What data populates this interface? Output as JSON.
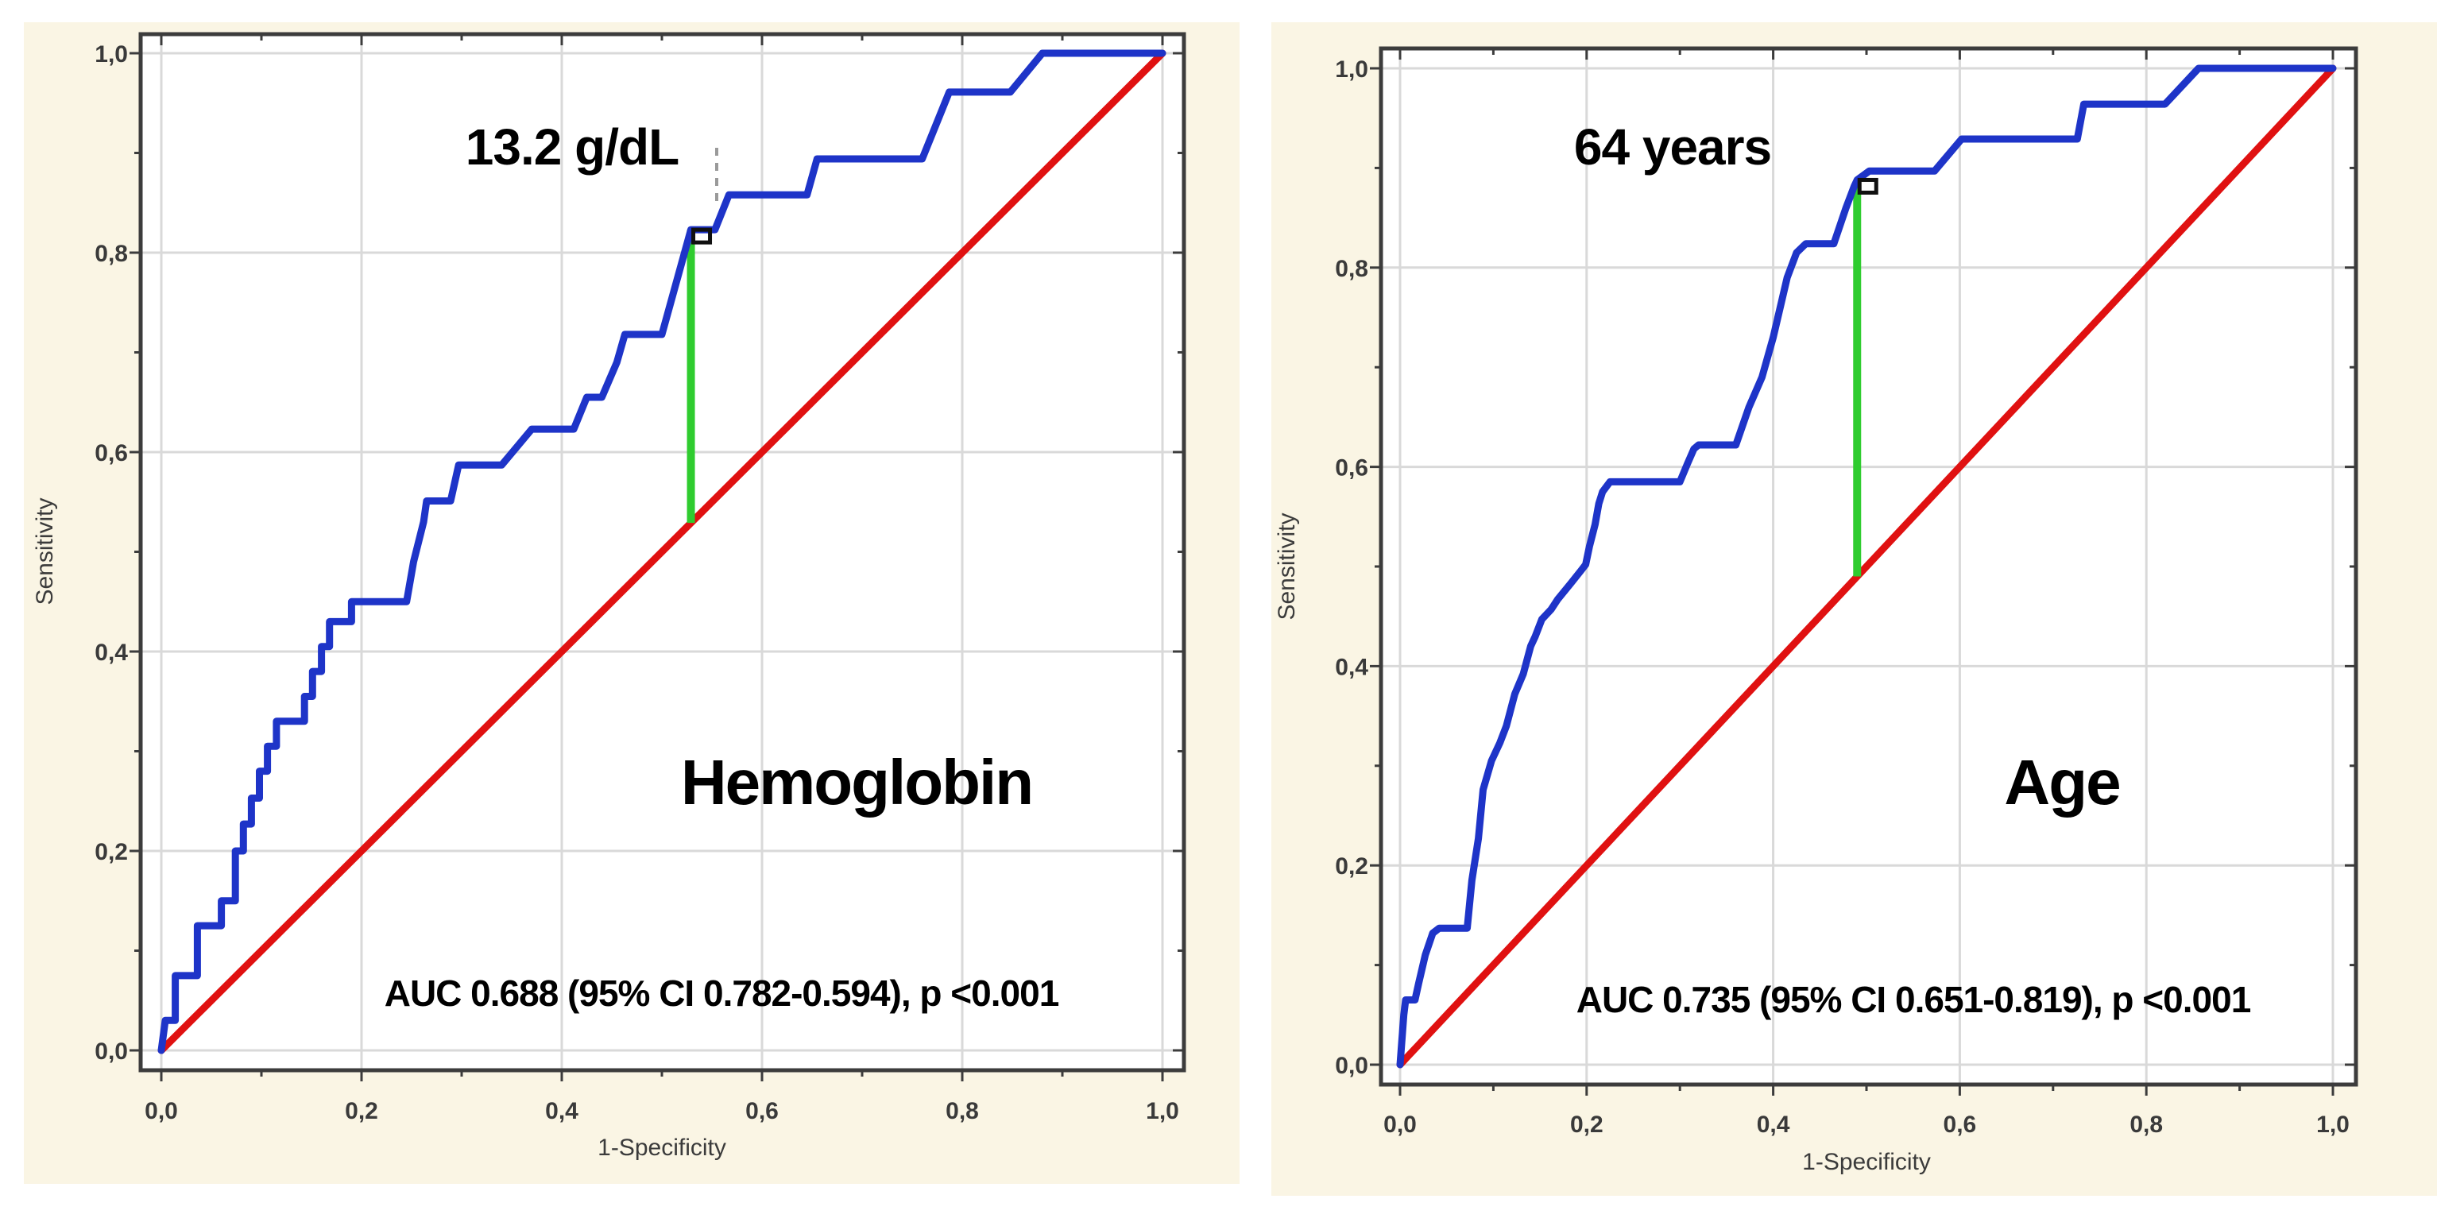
{
  "page": {
    "background": "#ffffff",
    "panel_background": "#faf5e4",
    "plot_background": "#ffffff",
    "grid_color": "#d9d9d9",
    "frame_color": "#3c3c3c",
    "tick_text_color": "#3a3a3a"
  },
  "chart_data": [
    {
      "type": "line",
      "title": "Hemoglobin",
      "xlabel": "1-Specificity",
      "ylabel": "Sensitivity",
      "xlim": [
        0,
        1
      ],
      "ylim": [
        0,
        1
      ],
      "grid": true,
      "x_ticks": [
        "0,0",
        "0,2",
        "0,4",
        "0,6",
        "0,8",
        "1,0"
      ],
      "y_ticks": [
        "0,0",
        "0,2",
        "0,4",
        "0,6",
        "0,8",
        "1,0"
      ],
      "auc": 0.688,
      "ci_95": "0.782-0.594",
      "p_value": "<0.001",
      "auc_text": "AUC 0.688 (95% CI 0.782-0.594), p <0.001",
      "cutoff_label": "13.2 g/dL",
      "cutoff_point": {
        "x": 0.529,
        "sensitivity": 0.823,
        "diagonal_y": 0.529
      },
      "series": [
        {
          "name": "ROC curve",
          "color": "#1e34c8",
          "points": [
            [
              0,
              0
            ],
            [
              0.004,
              0.03
            ],
            [
              0.014,
              0.03
            ],
            [
              0.014,
              0.075
            ],
            [
              0.036,
              0.075
            ],
            [
              0.036,
              0.125
            ],
            [
              0.06,
              0.125
            ],
            [
              0.06,
              0.15
            ],
            [
              0.074,
              0.15
            ],
            [
              0.074,
              0.2
            ],
            [
              0.082,
              0.2
            ],
            [
              0.082,
              0.227
            ],
            [
              0.09,
              0.227
            ],
            [
              0.09,
              0.253
            ],
            [
              0.098,
              0.253
            ],
            [
              0.098,
              0.28
            ],
            [
              0.106,
              0.28
            ],
            [
              0.106,
              0.305
            ],
            [
              0.115,
              0.305
            ],
            [
              0.115,
              0.33
            ],
            [
              0.143,
              0.33
            ],
            [
              0.143,
              0.355
            ],
            [
              0.151,
              0.355
            ],
            [
              0.151,
              0.38
            ],
            [
              0.16,
              0.38
            ],
            [
              0.16,
              0.405
            ],
            [
              0.168,
              0.405
            ],
            [
              0.168,
              0.43
            ],
            [
              0.19,
              0.43
            ],
            [
              0.19,
              0.45
            ],
            [
              0.245,
              0.45
            ],
            [
              0.252,
              0.49
            ],
            [
              0.262,
              0.53
            ],
            [
              0.265,
              0.551
            ],
            [
              0.289,
              0.551
            ],
            [
              0.297,
              0.587
            ],
            [
              0.34,
              0.587
            ],
            [
              0.37,
              0.623
            ],
            [
              0.412,
              0.623
            ],
            [
              0.425,
              0.655
            ],
            [
              0.44,
              0.655
            ],
            [
              0.455,
              0.69
            ],
            [
              0.463,
              0.718
            ],
            [
              0.5,
              0.718
            ],
            [
              0.529,
              0.823
            ],
            [
              0.553,
              0.823
            ],
            [
              0.567,
              0.858
            ],
            [
              0.645,
              0.858
            ],
            [
              0.655,
              0.894
            ],
            [
              0.76,
              0.894
            ],
            [
              0.787,
              0.961
            ],
            [
              0.848,
              0.961
            ],
            [
              0.88,
              1
            ],
            [
              1,
              1
            ]
          ]
        },
        {
          "name": "Reference diagonal",
          "color": "#e01111",
          "points": [
            [
              0,
              0
            ],
            [
              1,
              1
            ]
          ]
        },
        {
          "name": "Cutoff drop line",
          "color": "#2fcc2f"
        }
      ]
    },
    {
      "type": "line",
      "title": "Age",
      "xlabel": "1-Specificity",
      "ylabel": "Sensitivity",
      "xlim": [
        0,
        1
      ],
      "ylim": [
        0,
        1
      ],
      "grid": true,
      "x_ticks": [
        "0,0",
        "0,2",
        "0,4",
        "0,6",
        "0,8",
        "1,0"
      ],
      "y_ticks": [
        "0,0",
        "0,2",
        "0,4",
        "0,6",
        "0,8",
        "1,0"
      ],
      "auc": 0.735,
      "ci_95": "0.651-0.819",
      "p_value": "<0.001",
      "auc_text": "AUC 0.735 (95% CI 0.651-0.819), p <0.001",
      "cutoff_label": "64 years",
      "cutoff_point": {
        "x": 0.49,
        "sensitivity": 0.888,
        "diagonal_y": 0.49
      },
      "series": [
        {
          "name": "ROC curve",
          "color": "#1e34c8",
          "points": [
            [
              0,
              0
            ],
            [
              0.004,
              0.05
            ],
            [
              0.006,
              0.065
            ],
            [
              0.016,
              0.065
            ],
            [
              0.02,
              0.082
            ],
            [
              0.027,
              0.11
            ],
            [
              0.035,
              0.132
            ],
            [
              0.042,
              0.137
            ],
            [
              0.072,
              0.137
            ],
            [
              0.077,
              0.185
            ],
            [
              0.084,
              0.227
            ],
            [
              0.089,
              0.276
            ],
            [
              0.098,
              0.305
            ],
            [
              0.107,
              0.323
            ],
            [
              0.114,
              0.34
            ],
            [
              0.123,
              0.372
            ],
            [
              0.132,
              0.392
            ],
            [
              0.14,
              0.42
            ],
            [
              0.145,
              0.43
            ],
            [
              0.152,
              0.447
            ],
            [
              0.162,
              0.457
            ],
            [
              0.169,
              0.467
            ],
            [
              0.183,
              0.483
            ],
            [
              0.194,
              0.496
            ],
            [
              0.199,
              0.502
            ],
            [
              0.203,
              0.52
            ],
            [
              0.209,
              0.542
            ],
            [
              0.213,
              0.563
            ],
            [
              0.217,
              0.575
            ],
            [
              0.225,
              0.585
            ],
            [
              0.3,
              0.585
            ],
            [
              0.308,
              0.603
            ],
            [
              0.315,
              0.618
            ],
            [
              0.32,
              0.622
            ],
            [
              0.36,
              0.622
            ],
            [
              0.374,
              0.66
            ],
            [
              0.388,
              0.69
            ],
            [
              0.4,
              0.73
            ],
            [
              0.415,
              0.79
            ],
            [
              0.425,
              0.815
            ],
            [
              0.435,
              0.824
            ],
            [
              0.465,
              0.824
            ],
            [
              0.478,
              0.86
            ],
            [
              0.487,
              0.882
            ],
            [
              0.49,
              0.888
            ],
            [
              0.503,
              0.897
            ],
            [
              0.573,
              0.897
            ],
            [
              0.602,
              0.929
            ],
            [
              0.726,
              0.929
            ],
            [
              0.733,
              0.964
            ],
            [
              0.82,
              0.964
            ],
            [
              0.856,
              1
            ],
            [
              1,
              1
            ]
          ]
        },
        {
          "name": "Reference diagonal",
          "color": "#e01111",
          "points": [
            [
              0,
              0
            ],
            [
              1,
              1
            ]
          ]
        },
        {
          "name": "Cutoff drop line",
          "color": "#2fcc2f"
        }
      ]
    }
  ]
}
